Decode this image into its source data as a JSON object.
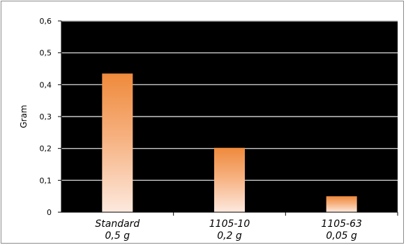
{
  "chart_data": {
    "type": "bar",
    "categories": [
      [
        "Standard",
        "0,5 g"
      ],
      [
        "1105-10",
        "0,2 g"
      ],
      [
        "1105-63",
        "0,05 g"
      ]
    ],
    "values": [
      0.435,
      0.202,
      0.05
    ],
    "title": "",
    "xlabel": "",
    "ylabel": "Gram",
    "ylim": [
      0,
      0.6
    ],
    "yticks": [
      "0",
      "0,1",
      "0,2",
      "0,3",
      "0,4",
      "0,5",
      "0,6"
    ],
    "grid": true,
    "legend": "none",
    "colors": {
      "plot_background": "#000000",
      "gridline": "#c8c8c8",
      "bar_top": "#ef8a3c",
      "bar_bottom": "#fde9de"
    }
  }
}
